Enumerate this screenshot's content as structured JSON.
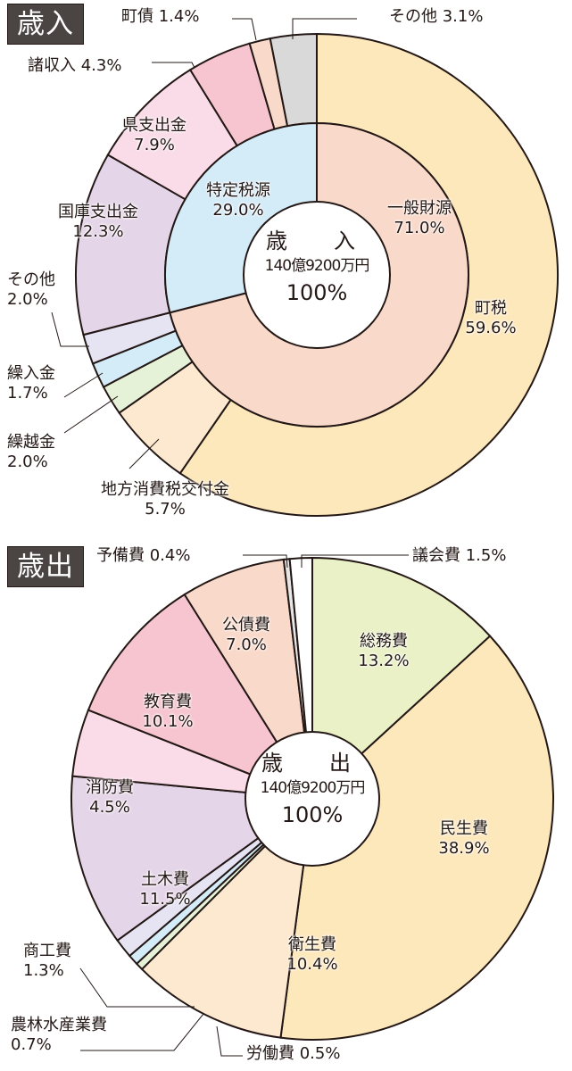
{
  "chart_data": [
    {
      "type": "pie",
      "title": "歳入",
      "center_label": {
        "title": "歳　入",
        "amount": "140億9200万円",
        "percent": "100%"
      },
      "inner_ring": {
        "categories": [
          "一般財源",
          "特定税源"
        ],
        "values": [
          71.0,
          29.0
        ],
        "colors": [
          "#f9d9c9",
          "#d4ebf8"
        ]
      },
      "outer_ring": {
        "categories": [
          "町税",
          "地方消費税交付金",
          "繰越金",
          "繰入金",
          "その他",
          "国庫支出金",
          "県支出金",
          "諸収入",
          "町債",
          "その他"
        ],
        "values": [
          59.6,
          5.7,
          2.0,
          1.7,
          2.0,
          12.3,
          7.9,
          4.3,
          1.4,
          3.1
        ],
        "colors": [
          "#fde8bc",
          "#fde9d0",
          "#e6f2d8",
          "#d4ebf8",
          "#e6e3f3",
          "#e5d5e8",
          "#f9dce8",
          "#f6c5cf",
          "#f9d9c9",
          "#d9d9d9"
        ]
      },
      "unit": "%"
    },
    {
      "type": "pie",
      "title": "歳出",
      "center_label": {
        "title": "歳　出",
        "amount": "140億9200万円",
        "percent": "100%"
      },
      "categories": [
        "総務費",
        "民生費",
        "衛生費",
        "労働費",
        "農林水産業費",
        "商工費",
        "土木費",
        "消防費",
        "教育費",
        "公債費",
        "予備費",
        "議会費"
      ],
      "values": [
        13.2,
        38.9,
        10.4,
        0.5,
        0.7,
        1.3,
        11.5,
        4.5,
        10.1,
        7.0,
        0.4,
        1.5
      ],
      "colors": [
        "#eaf1c6",
        "#fde8bc",
        "#fde9d0",
        "#e6f2d8",
        "#d4ebf8",
        "#e6e3f3",
        "#e5d5e8",
        "#f9dce8",
        "#f6c5cf",
        "#f9d9c9",
        "#e6e6e6",
        "#ffffff"
      ],
      "unit": "%"
    }
  ],
  "revenue": {
    "badge": "歳入",
    "center": {
      "title": "歳　入",
      "amount": "140億9200万円",
      "percent": "100%"
    },
    "labels": {
      "town_bond": "町債 1.4%",
      "other_top": "その他 3.1%",
      "misc_income_1": "諸収入 4.3%",
      "pref_1": "県支出金",
      "pref_2": "7.9%",
      "nat_1": "国庫支出金",
      "nat_2": "12.3%",
      "other_1": "その他",
      "other_2": "2.0%",
      "transfer_1": "繰入金",
      "transfer_2": "1.7%",
      "carry_1": "繰越金",
      "carry_2": "2.0%",
      "local_1": "地方消費税交付金",
      "local_2": "5.7%",
      "town_tax_1": "町税",
      "town_tax_2": "59.6%",
      "general_1": "一般財源",
      "general_2": "71.0%",
      "specific_1": "特定税源",
      "specific_2": "29.0%"
    }
  },
  "expenditure": {
    "badge": "歳出",
    "center": {
      "title": "歳　出",
      "amount": "140億9200万円",
      "percent": "100%"
    },
    "labels": {
      "reserve": "予備費 0.4%",
      "assembly": "議会費 1.5%",
      "general_1": "総務費",
      "general_2": "13.2%",
      "welfare_1": "民生費",
      "welfare_2": "38.9%",
      "health_1": "衛生費",
      "health_2": "10.4%",
      "labor": "労働費 0.5%",
      "agri_1": "農林水産業費",
      "agri_2": "0.7%",
      "commerce_1": "商工費",
      "commerce_2": "1.3%",
      "civil_1": "土木費",
      "civil_2": "11.5%",
      "fire_1": "消防費",
      "fire_2": "4.5%",
      "edu_1": "教育費",
      "edu_2": "10.1%",
      "debt_1": "公債費",
      "debt_2": "7.0%"
    }
  }
}
